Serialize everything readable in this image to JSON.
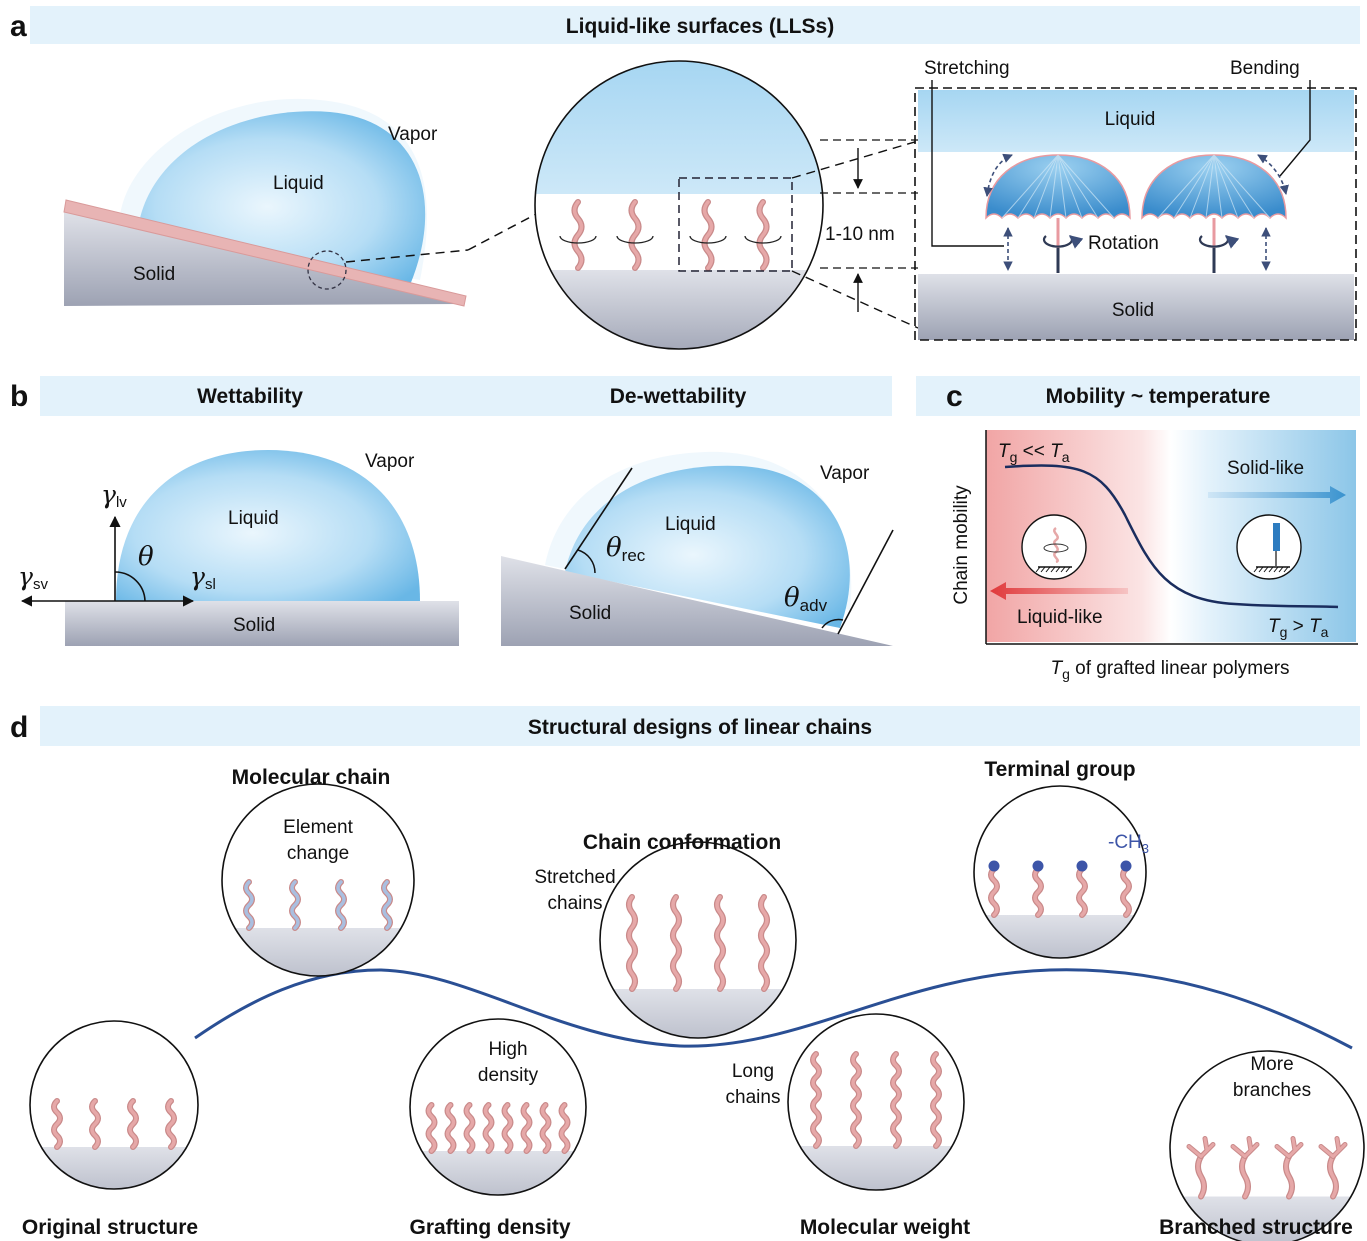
{
  "panel_a": {
    "letter": "a",
    "header": "Liquid-like surfaces (LLSs)",
    "droplet": {
      "vapor": "Vapor",
      "liquid": "Liquid",
      "solid": "Solid"
    },
    "zoom": {
      "thickness": "1-10 nm"
    },
    "umbrella": {
      "liquid": "Liquid",
      "solid": "Solid",
      "stretching": "Stretching",
      "bending": "Bending",
      "rotation": "Rotation"
    }
  },
  "panel_b": {
    "letter": "b",
    "wettability": {
      "header": "Wettability",
      "vapor": "Vapor",
      "liquid": "Liquid",
      "solid": "Solid",
      "gamma": "γ",
      "lv_sub": "lv",
      "sv_sub": "sv",
      "sl_sub": "sl",
      "theta": "θ"
    },
    "dewettability": {
      "header": "De-wettability",
      "vapor": "Vapor",
      "liquid": "Liquid",
      "solid": "Solid",
      "theta": "θ",
      "rec_sub": "rec",
      "adv_sub": "adv"
    }
  },
  "panel_c": {
    "letter": "c",
    "header": "Mobility ~ temperature",
    "ylabel": "Chain mobility",
    "xlabel_T": "T",
    "xlabel_sub": "g",
    "xlabel_rest": " of grafted linear polymers",
    "top_left_T": "T",
    "top_left_sub": "g",
    "top_left_op": " << ",
    "top_left_T2": "T",
    "top_left_sub2": "a",
    "bottom_right_T": "T",
    "bottom_right_sub": "g",
    "bottom_right_op": " > ",
    "bottom_right_T2": "T",
    "bottom_right_sub2": "a",
    "solid_like": "Solid-like",
    "liquid_like": "Liquid-like"
  },
  "panel_d": {
    "letter": "d",
    "header": "Structural designs of linear chains",
    "molecular_chain": {
      "title": "Molecular chain",
      "line1": "Element",
      "line2": "change"
    },
    "chain_conformation": {
      "title": "Chain conformation",
      "line1": "Stretched",
      "line2": "chains"
    },
    "terminal_group": {
      "title": "Terminal group",
      "group_main": "-CH",
      "group_sub": "3"
    },
    "original": {
      "title": "Original structure"
    },
    "grafting": {
      "title": "Grafting density",
      "line1": "High",
      "line2": "density"
    },
    "molecular_weight": {
      "title": "Molecular weight",
      "line1": "Long",
      "line2": "chains"
    },
    "branched": {
      "title": "Branched structure",
      "line1": "More",
      "line2": "branches"
    }
  },
  "colors": {
    "header_band": "#e3f2fb",
    "chain": "#e6a8a8",
    "liquid": "#7cc1ea",
    "solid": "#a8adbd",
    "curve": "#2a4f94",
    "methyl": "#3d55a8"
  }
}
